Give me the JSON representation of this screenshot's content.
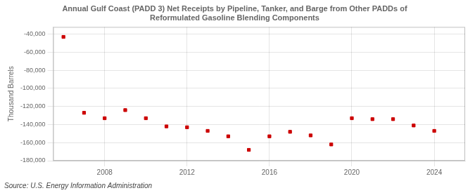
{
  "chart_data": {
    "type": "scatter",
    "title": "Annual Gulf Coast (PADD 3) Net Receipts by Pipeline, Tanker, and Barge from Other PADDs of\nReformulated Gasoline Blending Components",
    "ylabel": "Thousand Barrels",
    "source": "Source: U.S. Energy Information Administration",
    "x": [
      2006,
      2007,
      2008,
      2009,
      2010,
      2011,
      2012,
      2013,
      2014,
      2015,
      2016,
      2017,
      2018,
      2019,
      2020,
      2021,
      2022,
      2023,
      2024
    ],
    "values": [
      -43000,
      -127000,
      -133000,
      -124000,
      -133000,
      -142000,
      -143000,
      -147000,
      -153000,
      -168000,
      -153000,
      -148000,
      -152000,
      -162000,
      -133000,
      -134000,
      -134000,
      -141000,
      -147000
    ],
    "color": "#cc0000",
    "marker": "square",
    "xlim": [
      2005.5,
      2025.5
    ],
    "ylim": [
      -180000,
      -32000
    ],
    "xticks": [
      2008,
      2012,
      2016,
      2020,
      2024
    ],
    "yticks": [
      {
        "value": -180000,
        "label": "-180,000"
      },
      {
        "value": -160000,
        "label": "-160,000"
      },
      {
        "value": -140000,
        "label": "-140,000"
      },
      {
        "value": -120000,
        "label": "-120,000"
      },
      {
        "value": -100000,
        "label": "-100,000"
      },
      {
        "value": -80000,
        "label": "-80,000"
      },
      {
        "value": -60000,
        "label": "-60,000"
      },
      {
        "value": -40000,
        "label": "-40,000"
      }
    ],
    "grid": true
  }
}
